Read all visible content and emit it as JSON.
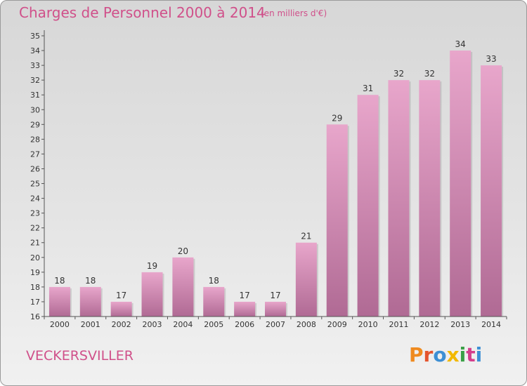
{
  "header": {
    "title": "Charges de Personnel 2000 à 2014",
    "subtitle": "(en milliers d'€)"
  },
  "footer": {
    "place": "VECKERSVILLER",
    "logo_text": "Proxiti"
  },
  "colors": {
    "title": "#d0508a",
    "bar_top": "#e8a6cb",
    "bar_bottom": "#b06a94",
    "logo_letters": [
      "#ef8a1f",
      "#e4542d",
      "#3d8fd4",
      "#f2b800",
      "#3aa047",
      "#d43e8c",
      "#3d8fd4"
    ]
  },
  "chart_data": {
    "type": "bar",
    "categories": [
      "2000",
      "2001",
      "2002",
      "2003",
      "2004",
      "2005",
      "2006",
      "2007",
      "2008",
      "2009",
      "2010",
      "2011",
      "2012",
      "2013",
      "2014"
    ],
    "values": [
      18,
      18,
      17,
      19,
      20,
      18,
      17,
      17,
      21,
      29,
      31,
      32,
      32,
      34,
      33
    ],
    "title": "Charges de Personnel 2000 à 2014",
    "subtitle": "(en milliers d'€)",
    "xlabel": "",
    "ylabel": "",
    "ylim": [
      16,
      35
    ],
    "yticks": [
      16,
      17,
      18,
      19,
      20,
      21,
      22,
      23,
      24,
      25,
      26,
      27,
      28,
      29,
      30,
      31,
      32,
      33,
      34,
      35
    ],
    "grid": false,
    "data_labels": true
  }
}
